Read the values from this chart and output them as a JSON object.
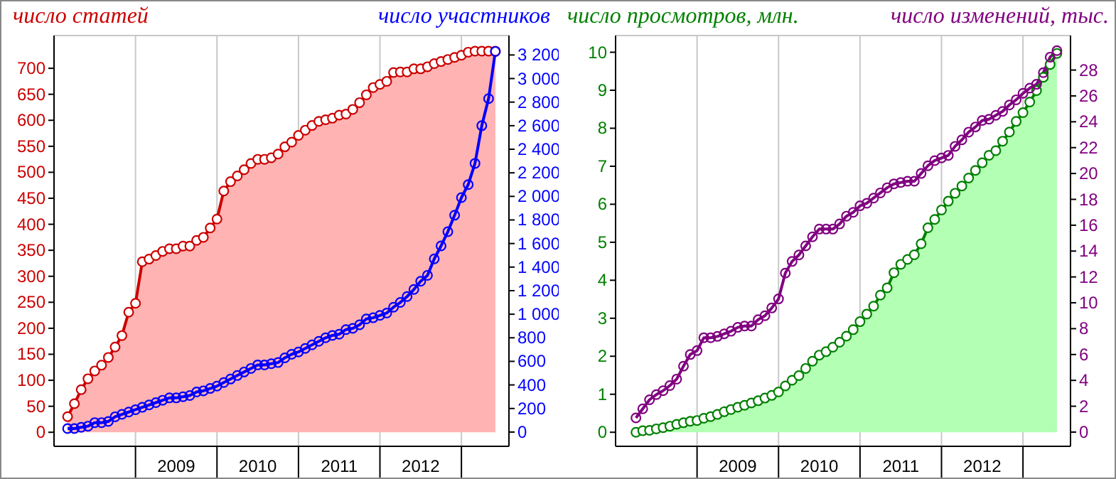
{
  "chart_data": [
    {
      "type": "area",
      "ylabel": "число статей",
      "y2label": "число участников",
      "x": [
        "2008-03",
        "2008-04",
        "2008-05",
        "2008-06",
        "2008-07",
        "2008-08",
        "2008-09",
        "2008-10",
        "2008-11",
        "2008-12",
        "2009-01",
        "2009-02",
        "2009-03",
        "2009-04",
        "2009-05",
        "2009-06",
        "2009-07",
        "2009-08",
        "2009-09",
        "2009-10",
        "2009-11",
        "2009-12",
        "2010-01",
        "2010-02",
        "2010-03",
        "2010-04",
        "2010-05",
        "2010-06",
        "2010-07",
        "2010-08",
        "2010-09",
        "2010-10",
        "2010-11",
        "2010-12",
        "2011-01",
        "2011-02",
        "2011-03",
        "2011-04",
        "2011-05",
        "2011-06",
        "2011-07",
        "2011-08",
        "2011-09",
        "2011-10",
        "2011-11",
        "2011-12",
        "2012-01",
        "2012-02",
        "2012-03",
        "2012-04",
        "2012-05",
        "2012-06",
        "2012-07",
        "2012-08",
        "2012-09",
        "2012-10",
        "2012-11",
        "2012-12",
        "2013-01",
        "2013-02",
        "2013-03",
        "2013-04",
        "2013-05",
        "2013-06"
      ],
      "xlim": [
        "2008-01",
        "2013-08"
      ],
      "xticks": [
        {
          "value": "2009-01",
          "label": null
        },
        {
          "value": "2009-07",
          "label": "2009"
        },
        {
          "value": "2010-01",
          "label": null
        },
        {
          "value": "2010-07",
          "label": "2010"
        },
        {
          "value": "2011-01",
          "label": null
        },
        {
          "value": "2011-07",
          "label": "2011"
        },
        {
          "value": "2012-01",
          "label": null
        },
        {
          "value": "2012-07",
          "label": "2012"
        },
        {
          "value": "2013-01",
          "label": null
        }
      ],
      "ylim": [
        -27,
        763
      ],
      "yticks": [
        0,
        50,
        100,
        150,
        200,
        250,
        300,
        350,
        400,
        450,
        500,
        550,
        600,
        650,
        700
      ],
      "y2lim": [
        -121,
        3365
      ],
      "y2ticks": [
        0,
        200,
        400,
        600,
        800,
        {
          "value": 1000,
          "label": "1 000"
        },
        {
          "value": 1200,
          "label": "1 200"
        },
        {
          "value": 1400,
          "label": "1 400"
        },
        {
          "value": 1600,
          "label": "1 600"
        },
        {
          "value": 1800,
          "label": "1 800"
        },
        {
          "value": 2000,
          "label": "2 000"
        },
        {
          "value": 2200,
          "label": "2 200"
        },
        {
          "value": 2400,
          "label": "2 400"
        },
        {
          "value": 2600,
          "label": "2 600"
        },
        {
          "value": 2800,
          "label": "2 800"
        },
        {
          "value": 3000,
          "label": "3 000"
        },
        {
          "value": 3200,
          "label": "3 200"
        }
      ],
      "grid": true,
      "legend": false,
      "marker": "circle",
      "line_style": "solid",
      "series": [
        {
          "type": "area",
          "color": "#cc0000",
          "values": [
            30,
            55,
            82,
            103,
            118,
            129,
            144,
            164,
            186,
            231,
            248,
            328,
            333,
            340,
            348,
            353,
            353,
            358,
            358,
            369,
            375,
            393,
            410,
            464,
            482,
            493,
            505,
            517,
            525,
            525,
            528,
            535,
            549,
            558,
            571,
            581,
            590,
            598,
            601,
            604,
            610,
            612,
            621,
            634,
            649,
            663,
            669,
            675,
            692,
            693,
            693,
            699,
            699,
            703,
            709,
            713,
            717,
            721,
            725,
            731,
            733,
            733,
            733,
            733
          ]
        },
        {
          "type": "line",
          "axis": "y2",
          "color": "#0000ff",
          "values": [
            30,
            30,
            40,
            50,
            80,
            80,
            90,
            130,
            150,
            170,
            190,
            210,
            230,
            250,
            270,
            290,
            290,
            300,
            310,
            340,
            350,
            370,
            390,
            420,
            450,
            480,
            510,
            540,
            570,
            570,
            580,
            590,
            630,
            660,
            680,
            710,
            740,
            770,
            800,
            820,
            830,
            870,
            880,
            910,
            960,
            970,
            990,
            1010,
            1060,
            1100,
            1150,
            1210,
            1280,
            1330,
            1470,
            1580,
            1700,
            1840,
            1990,
            2100,
            2280,
            2600,
            2830,
            3230
          ]
        }
      ]
    },
    {
      "type": "area",
      "ylabel": "число просмотров, млн.",
      "y2label": "число изменений, тыс.",
      "x": [
        "2008-04",
        "2008-05",
        "2008-06",
        "2008-07",
        "2008-08",
        "2008-09",
        "2008-10",
        "2008-11",
        "2008-12",
        "2009-01",
        "2009-02",
        "2009-03",
        "2009-04",
        "2009-05",
        "2009-06",
        "2009-07",
        "2009-08",
        "2009-09",
        "2009-10",
        "2009-11",
        "2009-12",
        "2010-01",
        "2010-02",
        "2010-03",
        "2010-04",
        "2010-05",
        "2010-06",
        "2010-07",
        "2010-08",
        "2010-09",
        "2010-10",
        "2010-11",
        "2010-12",
        "2011-01",
        "2011-02",
        "2011-03",
        "2011-04",
        "2011-05",
        "2011-06",
        "2011-07",
        "2011-08",
        "2011-09",
        "2011-10",
        "2011-11",
        "2011-12",
        "2012-01",
        "2012-02",
        "2012-03",
        "2012-04",
        "2012-05",
        "2012-06",
        "2012-07",
        "2012-08",
        "2012-09",
        "2012-10",
        "2012-11",
        "2012-12",
        "2013-01",
        "2013-02",
        "2013-03",
        "2013-04",
        "2013-05",
        "2013-06"
      ],
      "xlim": [
        "2008-01",
        "2013-08"
      ],
      "xticks": [
        {
          "value": "2009-01",
          "label": null
        },
        {
          "value": "2009-07",
          "label": "2009"
        },
        {
          "value": "2010-01",
          "label": null
        },
        {
          "value": "2010-07",
          "label": "2010"
        },
        {
          "value": "2011-01",
          "label": null
        },
        {
          "value": "2011-07",
          "label": "2011"
        },
        {
          "value": "2012-01",
          "label": null
        },
        {
          "value": "2012-07",
          "label": "2012"
        },
        {
          "value": "2013-01",
          "label": null
        }
      ],
      "ylim": [
        -0.37,
        10.44
      ],
      "yticks": [
        0,
        1,
        2,
        3,
        4,
        5,
        6,
        7,
        8,
        9,
        10
      ],
      "y2lim": [
        -1.1,
        30.67
      ],
      "y2ticks": [
        0,
        2,
        4,
        6,
        8,
        10,
        12,
        14,
        16,
        18,
        20,
        22,
        24,
        26,
        28
      ],
      "grid": true,
      "legend": false,
      "marker": "circle",
      "line_style": "solid",
      "series": [
        {
          "type": "area",
          "color": "#008000",
          "values": [
            0,
            0.04,
            0.05,
            0.09,
            0.12,
            0.16,
            0.21,
            0.25,
            0.29,
            0.31,
            0.37,
            0.41,
            0.47,
            0.54,
            0.6,
            0.66,
            0.71,
            0.77,
            0.83,
            0.9,
            0.97,
            1.06,
            1.22,
            1.37,
            1.49,
            1.68,
            1.87,
            2.03,
            2.12,
            2.24,
            2.37,
            2.53,
            2.7,
            2.91,
            3.11,
            3.32,
            3.61,
            3.8,
            4.2,
            4.42,
            4.55,
            4.67,
            4.96,
            5.38,
            5.6,
            5.85,
            6.08,
            6.29,
            6.48,
            6.69,
            6.89,
            7.09,
            7.29,
            7.41,
            7.66,
            7.9,
            8.18,
            8.41,
            8.69,
            8.99,
            9.34,
            9.68,
            9.97
          ]
        },
        {
          "type": "line",
          "axis": "y2",
          "color": "#800080",
          "values": [
            1.1,
            1.8,
            2.5,
            2.9,
            3.2,
            3.6,
            4.1,
            5.1,
            6,
            6.3,
            7.3,
            7.3,
            7.4,
            7.6,
            7.8,
            8.1,
            8.2,
            8.2,
            8.7,
            9,
            9.6,
            10.3,
            12.3,
            13.2,
            13.7,
            14.4,
            15.1,
            15.7,
            15.7,
            15.7,
            16.1,
            16.7,
            17,
            17.5,
            17.7,
            18.1,
            18.5,
            18.9,
            19.2,
            19.3,
            19.4,
            19.4,
            20,
            20.6,
            21,
            21.2,
            21.4,
            22.1,
            22.6,
            23.2,
            23.6,
            24.1,
            24.2,
            24.5,
            24.8,
            25.3,
            25.7,
            26.2,
            26.6,
            26.9,
            27.8,
            29,
            29.5
          ]
        }
      ]
    }
  ]
}
